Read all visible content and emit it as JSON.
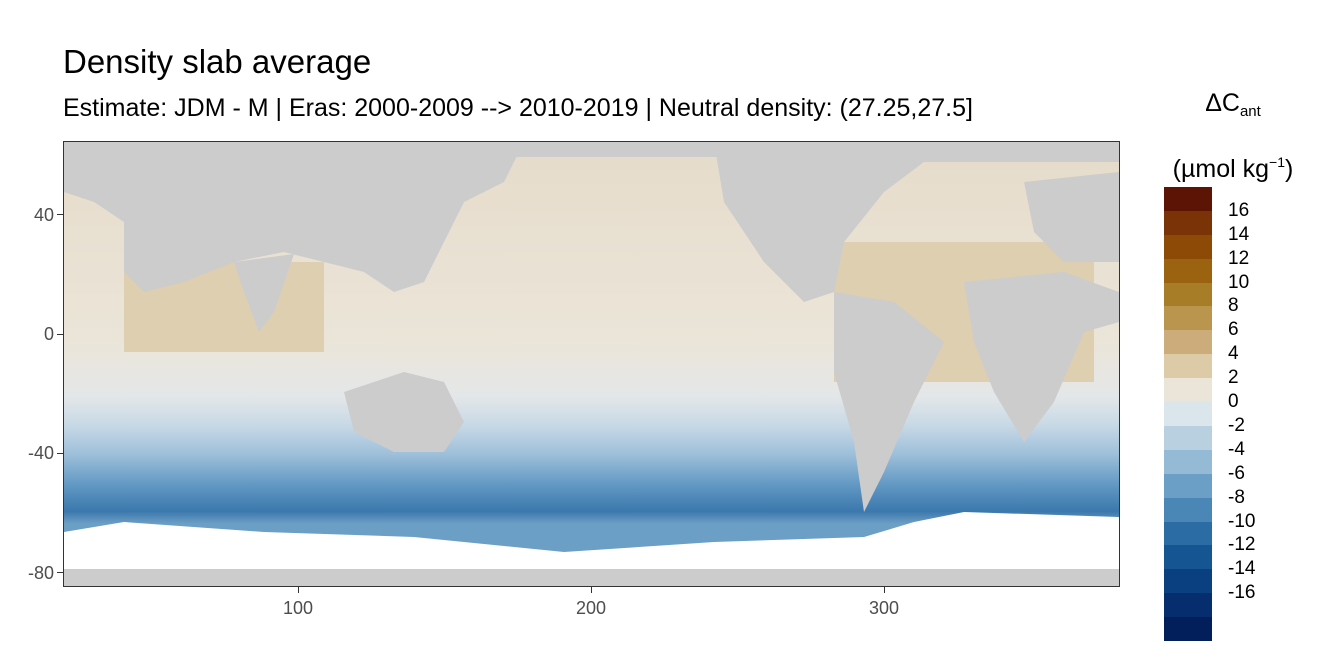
{
  "title": "Density slab average",
  "subtitle": "Estimate: JDM - M | Eras: 2000-2009 --> 2010-2019 | Neutral density: (27.25,27.5]",
  "legend": {
    "title_main": "ΔC",
    "title_sub": "ant",
    "unit_prefix": "(µmol kg",
    "unit_sup": "−1",
    "unit_suffix": ")",
    "labels": [
      "16",
      "14",
      "12",
      "10",
      "8",
      "6",
      "4",
      "2",
      "0",
      "-2",
      "-4",
      "-6",
      "-8",
      "-10",
      "-12",
      "-14",
      "-16"
    ],
    "colors": [
      "#5c1505",
      "#7a3306",
      "#8d4a07",
      "#9b6310",
      "#a87d28",
      "#b9954e",
      "#cbac7a",
      "#dccba6",
      "#ebe5d9",
      "#dbe5ec",
      "#b9d0e0",
      "#94bad5",
      "#6c9fc5",
      "#4a86b6",
      "#2c6ca4",
      "#155592",
      "#0a3f80",
      "#062e6e",
      "#031f5b"
    ]
  },
  "axes": {
    "x_ticks": [
      "100",
      "200",
      "300"
    ],
    "y_ticks": [
      "40",
      "0",
      "-40",
      "-80"
    ]
  },
  "map": {
    "land_color": "#cccccc",
    "ice_color": "#ffffff",
    "x_range": [
      20,
      380
    ],
    "y_range": [
      -85,
      65
    ]
  }
}
